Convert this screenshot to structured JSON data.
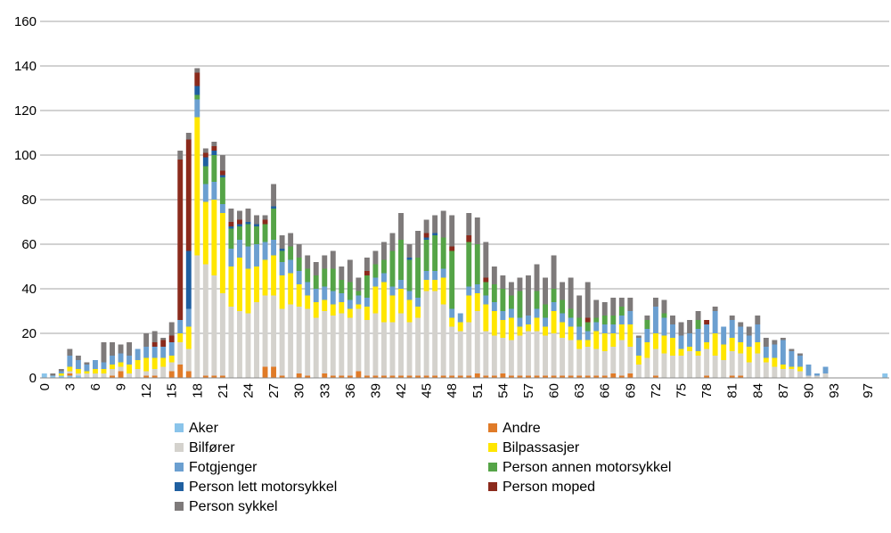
{
  "chart_data": {
    "type": "bar",
    "stacked": true,
    "grid": true,
    "legend_position": "bottom",
    "ylim": [
      0,
      160
    ],
    "y_ticks": [
      0,
      20,
      40,
      60,
      80,
      100,
      120,
      140,
      160
    ],
    "x": [
      0,
      1,
      2,
      3,
      4,
      5,
      6,
      7,
      8,
      9,
      10,
      11,
      12,
      13,
      14,
      15,
      16,
      17,
      18,
      19,
      20,
      21,
      22,
      23,
      24,
      25,
      26,
      27,
      28,
      29,
      30,
      31,
      32,
      33,
      34,
      35,
      36,
      37,
      38,
      39,
      40,
      41,
      42,
      43,
      44,
      45,
      46,
      47,
      48,
      49,
      50,
      51,
      52,
      53,
      54,
      55,
      56,
      57,
      58,
      59,
      60,
      61,
      62,
      63,
      64,
      65,
      66,
      67,
      68,
      69,
      70,
      71,
      72,
      73,
      74,
      75,
      76,
      77,
      78,
      79,
      80,
      81,
      82,
      83,
      84,
      85,
      86,
      87,
      88,
      89,
      90,
      91,
      92,
      93,
      94,
      95,
      96,
      97,
      98,
      99
    ],
    "x_tick_labels": [
      "0",
      "3",
      "6",
      "9",
      "12",
      "15",
      "18",
      "21",
      "24",
      "27",
      "30",
      "33",
      "36",
      "39",
      "42",
      "45",
      "48",
      "51",
      "54",
      "57",
      "60",
      "63",
      "66",
      "69",
      "72",
      "75",
      "78",
      "81",
      "84",
      "87",
      "90",
      "93",
      "97"
    ],
    "series": [
      {
        "name": "Aker",
        "color": "#8ac4ea",
        "values": [
          2,
          1,
          1,
          1,
          1,
          0,
          0,
          0,
          0,
          0,
          0,
          0,
          0,
          0,
          0,
          0,
          0,
          0,
          0,
          0,
          0,
          0,
          0,
          0,
          0,
          0,
          0,
          0,
          0,
          0,
          0,
          0,
          0,
          0,
          0,
          0,
          0,
          0,
          0,
          0,
          0,
          0,
          0,
          0,
          0,
          0,
          0,
          0,
          0,
          0,
          0,
          0,
          0,
          0,
          0,
          0,
          0,
          0,
          0,
          0,
          0,
          0,
          0,
          0,
          0,
          0,
          0,
          0,
          0,
          0,
          0,
          0,
          0,
          0,
          0,
          0,
          0,
          0,
          0,
          0,
          0,
          0,
          0,
          0,
          0,
          0,
          0,
          0,
          0,
          0,
          0,
          0,
          0,
          0,
          0,
          0,
          0,
          0,
          0,
          2
        ]
      },
      {
        "name": "Andre",
        "color": "#e07b28",
        "values": [
          0,
          0,
          0,
          1,
          0,
          0,
          0,
          0,
          1,
          3,
          0,
          0,
          1,
          1,
          0,
          3,
          6,
          3,
          0,
          1,
          1,
          1,
          0,
          0,
          0,
          0,
          5,
          5,
          1,
          0,
          2,
          1,
          0,
          2,
          1,
          1,
          1,
          3,
          1,
          1,
          1,
          1,
          1,
          1,
          1,
          1,
          1,
          1,
          1,
          1,
          1,
          2,
          1,
          1,
          2,
          1,
          1,
          1,
          1,
          1,
          1,
          1,
          1,
          1,
          1,
          1,
          1,
          2,
          1,
          2,
          0,
          0,
          1,
          0,
          0,
          0,
          0,
          0,
          1,
          0,
          0,
          1,
          1,
          0,
          0,
          0,
          0,
          0,
          0,
          0,
          0,
          0,
          0,
          0,
          0,
          0,
          0,
          0,
          0,
          0
        ]
      },
      {
        "name": "Bilfører",
        "color": "#d4d2cd",
        "values": [
          0,
          0,
          0,
          1,
          1,
          2,
          2,
          2,
          3,
          2,
          2,
          4,
          2,
          3,
          5,
          4,
          10,
          10,
          55,
          50,
          45,
          37,
          32,
          30,
          29,
          34,
          32,
          32,
          30,
          33,
          30,
          30,
          27,
          28,
          27,
          28,
          26,
          28,
          25,
          28,
          24,
          24,
          28,
          24,
          26,
          38,
          38,
          32,
          22,
          20,
          24,
          28,
          20,
          18,
          16,
          16,
          18,
          20,
          20,
          18,
          19,
          17,
          16,
          12,
          13,
          12,
          11,
          12,
          16,
          12,
          6,
          9,
          12,
          11,
          10,
          10,
          12,
          10,
          12,
          10,
          8,
          11,
          10,
          7,
          11,
          7,
          5,
          4,
          4,
          3,
          1,
          1,
          2,
          0,
          0,
          0,
          0,
          0,
          0,
          0
        ]
      },
      {
        "name": "Bilpassasjer",
        "color": "#ffe600",
        "values": [
          0,
          0,
          1,
          2,
          2,
          1,
          2,
          2,
          2,
          2,
          4,
          4,
          6,
          5,
          4,
          3,
          4,
          10,
          62,
          28,
          34,
          36,
          18,
          24,
          20,
          16,
          16,
          18,
          15,
          14,
          10,
          6,
          7,
          5,
          5,
          5,
          4,
          2,
          6,
          12,
          18,
          12,
          11,
          10,
          5,
          5,
          5,
          12,
          4,
          4,
          12,
          8,
          12,
          11,
          8,
          10,
          4,
          3,
          6,
          4,
          10,
          7,
          6,
          4,
          3,
          8,
          8,
          6,
          7,
          10,
          4,
          7,
          7,
          8,
          8,
          3,
          2,
          2,
          3,
          10,
          7,
          6,
          5,
          7,
          5,
          2,
          4,
          2,
          1,
          2,
          0,
          0,
          0,
          0,
          0,
          0,
          0,
          0,
          0,
          0
        ]
      },
      {
        "name": "Fotgjenger",
        "color": "#6b9fd0",
        "values": [
          0,
          0,
          1,
          5,
          4,
          3,
          4,
          3,
          4,
          4,
          4,
          5,
          5,
          5,
          5,
          6,
          6,
          8,
          8,
          8,
          8,
          4,
          8,
          8,
          10,
          10,
          8,
          7,
          6,
          6,
          6,
          6,
          6,
          6,
          6,
          4,
          4,
          4,
          4,
          4,
          4,
          4,
          4,
          4,
          4,
          4,
          4,
          4,
          4,
          4,
          4,
          4,
          4,
          4,
          4,
          4,
          4,
          4,
          4,
          4,
          4,
          4,
          4,
          6,
          4,
          4,
          4,
          4,
          4,
          6,
          8,
          6,
          12,
          8,
          6,
          6,
          6,
          10,
          8,
          10,
          8,
          8,
          7,
          5,
          8,
          5,
          6,
          11,
          7,
          5,
          5,
          1,
          3,
          0,
          0,
          0,
          0,
          0,
          0,
          0
        ]
      },
      {
        "name": "Person annen motorsykkel",
        "color": "#55a447",
        "values": [
          0,
          0,
          0,
          0,
          0,
          0,
          0,
          0,
          0,
          0,
          0,
          0,
          0,
          0,
          0,
          0,
          0,
          0,
          2,
          8,
          12,
          12,
          9,
          6,
          10,
          8,
          8,
          14,
          5,
          6,
          6,
          6,
          6,
          8,
          10,
          6,
          8,
          2,
          10,
          6,
          6,
          16,
          18,
          14,
          18,
          14,
          16,
          14,
          26,
          0,
          20,
          18,
          6,
          8,
          10,
          6,
          12,
          0,
          8,
          6,
          6,
          6,
          4,
          4,
          4,
          2,
          4,
          4,
          4,
          0,
          0,
          4,
          0,
          2,
          0,
          0,
          0,
          4,
          0,
          0,
          0,
          0,
          0,
          0,
          0,
          0,
          0,
          0,
          0,
          0,
          0,
          0,
          0,
          0,
          0,
          0,
          0,
          0,
          0,
          0
        ]
      },
      {
        "name": "Person lett motorsykkel",
        "color": "#1f5fa0",
        "values": [
          0,
          0,
          0,
          0,
          0,
          0,
          0,
          0,
          0,
          0,
          0,
          0,
          0,
          0,
          0,
          0,
          0,
          26,
          4,
          4,
          2,
          1,
          1,
          1,
          1,
          1,
          0,
          1,
          1,
          0,
          0,
          0,
          0,
          0,
          0,
          0,
          0,
          0,
          0,
          0,
          0,
          0,
          0,
          1,
          0,
          1,
          1,
          0,
          0,
          0,
          0,
          0,
          0,
          0,
          0,
          0,
          0,
          0,
          0,
          0,
          0,
          0,
          0,
          0,
          0,
          0,
          0,
          0,
          0,
          0,
          0,
          0,
          0,
          0,
          0,
          0,
          0,
          0,
          0,
          0,
          0,
          0,
          0,
          0,
          0,
          0,
          0,
          0,
          0,
          0,
          0,
          0,
          0,
          0,
          0,
          0,
          0,
          0,
          0,
          0
        ]
      },
      {
        "name": "Person moped",
        "color": "#8b2a1c",
        "values": [
          0,
          0,
          0,
          0,
          0,
          0,
          0,
          0,
          0,
          0,
          0,
          0,
          0,
          2,
          3,
          3,
          72,
          50,
          6,
          2,
          2,
          2,
          2,
          2,
          0,
          0,
          2,
          0,
          0,
          0,
          0,
          0,
          0,
          0,
          0,
          0,
          0,
          0,
          2,
          0,
          0,
          0,
          0,
          0,
          0,
          2,
          0,
          0,
          2,
          0,
          3,
          0,
          2,
          0,
          0,
          0,
          0,
          0,
          0,
          0,
          0,
          0,
          0,
          0,
          2,
          0,
          0,
          0,
          0,
          0,
          0,
          0,
          0,
          0,
          0,
          0,
          0,
          0,
          2,
          0,
          0,
          0,
          0,
          0,
          0,
          0,
          0,
          0,
          0,
          0,
          0,
          0,
          0,
          0,
          0,
          0,
          0,
          0,
          0,
          0
        ]
      },
      {
        "name": "Person sykkel",
        "color": "#7e7a7a",
        "values": [
          0,
          1,
          1,
          3,
          2,
          1,
          0,
          9,
          6,
          4,
          6,
          0,
          6,
          5,
          1,
          6,
          4,
          3,
          2,
          2,
          2,
          7,
          6,
          4,
          6,
          4,
          2,
          10,
          6,
          6,
          6,
          6,
          6,
          6,
          8,
          6,
          10,
          6,
          6,
          6,
          8,
          8,
          12,
          6,
          12,
          6,
          8,
          12,
          14,
          0,
          10,
          12,
          16,
          8,
          6,
          6,
          6,
          18,
          12,
          12,
          15,
          8,
          14,
          10,
          16,
          8,
          6,
          8,
          4,
          6,
          1,
          2,
          4,
          6,
          4,
          6,
          6,
          4,
          0,
          2,
          0,
          2,
          2,
          4,
          4,
          4,
          2,
          1,
          1,
          1,
          0,
          0,
          0,
          0,
          0,
          0,
          0,
          0,
          0,
          0
        ]
      }
    ]
  }
}
